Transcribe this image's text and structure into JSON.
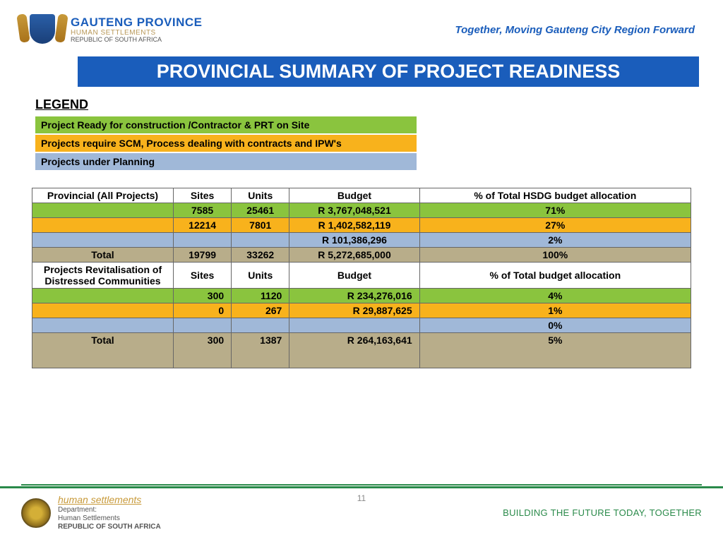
{
  "colors": {
    "blue_bar": "#1a5dbb",
    "green": "#8ac43e",
    "orange": "#f8b21c",
    "light_blue": "#a0b8d8",
    "tan": "#b8ad8a",
    "border": "#666666",
    "footer_green": "#2a8a4a",
    "gold": "#c89a3a"
  },
  "header": {
    "province": "GAUTENG PROVINCE",
    "dept": "HUMAN SETTLEMENTS",
    "republic": "REPUBLIC OF SOUTH AFRICA",
    "motto": "Together, Moving Gauteng City Region Forward"
  },
  "title": "PROVINCIAL SUMMARY OF PROJECT READINESS",
  "legend": {
    "heading": "LEGEND",
    "items": [
      {
        "text": "Project Ready for construction /Contractor & PRT on Site",
        "bg": "#8ac43e"
      },
      {
        "text": "Projects require  SCM, Process dealing  with contracts and IPW's",
        "bg": "#f8b21c"
      },
      {
        "text": "Projects under Planning",
        "bg": "#a0b8d8"
      }
    ]
  },
  "table1": {
    "headers": [
      "Provincial (All Projects)",
      "Sites",
      "Units",
      "Budget",
      "% of Total HSDG budget allocation"
    ],
    "rows": [
      {
        "bg": "#8ac43e",
        "cells": [
          "",
          "7585",
          "25461",
          "R 3,767,048,521",
          "71%"
        ]
      },
      {
        "bg": "#f8b21c",
        "cells": [
          "",
          "12214",
          "7801",
          "R 1,402,582,119",
          "27%"
        ]
      },
      {
        "bg": "#a0b8d8",
        "cells": [
          "",
          "",
          "",
          "R 101,386,296",
          "2%"
        ]
      }
    ],
    "total": [
      "Total",
      "19799",
      "33262",
      "R 5,272,685,000",
      "100%"
    ]
  },
  "table2": {
    "headers": [
      "Projects Revitalisation of Distressed Communities",
      "Sites",
      "Units",
      "Budget",
      "% of Total budget allocation"
    ],
    "rows": [
      {
        "bg": "#8ac43e",
        "cells": [
          "",
          "300",
          "1120",
          "R 234,276,016",
          "4%"
        ],
        "align": "right"
      },
      {
        "bg": "#f8b21c",
        "cells": [
          "",
          "0",
          "267",
          "R 29,887,625",
          "1%"
        ],
        "align": "right"
      },
      {
        "bg": "#a0b8d8",
        "cells": [
          "",
          "",
          "",
          "",
          "0%"
        ]
      }
    ],
    "total": [
      "Total",
      "300",
      "1387",
      "R 264,163,641",
      "5%"
    ]
  },
  "footer": {
    "hs": "human settlements",
    "dept": "Department:",
    "dept2": "Human Settlements",
    "rep": "REPUBLIC OF SOUTH AFRICA",
    "motto": "BUILDING THE FUTURE TODAY, TOGETHER"
  },
  "page_number": "11"
}
